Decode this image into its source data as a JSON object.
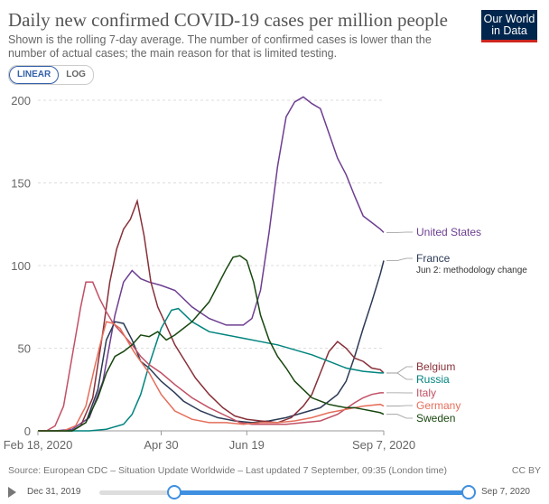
{
  "header": {
    "title": "Daily new confirmed COVID-19 cases per million people",
    "subtitle": "Shown is the rolling 7-day average. The number of confirmed cases is lower than the number of actual cases; the main reason for that is limited testing.",
    "logo_line1": "Our World",
    "logo_line2": "in Data"
  },
  "scale_toggle": {
    "linear_label": "LINEAR",
    "log_label": "LOG",
    "selected": "LINEAR"
  },
  "footer": {
    "source": "Source: European CDC – Situation Update Worldwide – Last updated 7 September, 09:35 (London time)",
    "license": "CC BY"
  },
  "timeline": {
    "start_label": "Dec 31, 2019",
    "end_label": "Sep 7, 2020",
    "selection_start_fraction": 0.19,
    "selection_end_fraction": 1.0
  },
  "chart_data": {
    "type": "line",
    "title": "Daily new confirmed COVID-19 cases per million people",
    "xlabel": "",
    "ylabel": "",
    "ylim": [
      0,
      200
    ],
    "yticks": [
      0,
      50,
      100,
      150,
      200
    ],
    "xlim": [
      "2020-02-18",
      "2020-09-07"
    ],
    "xticks": [
      {
        "day": 0,
        "label": "Feb 18, 2020"
      },
      {
        "day": 72,
        "label": "Apr 30"
      },
      {
        "day": 122,
        "label": "Jun 19"
      },
      {
        "day": 202,
        "label": "Sep 7, 2020"
      }
    ],
    "grid": true,
    "annotations": [
      "Jun 2: methodology change"
    ],
    "series": [
      {
        "name": "United States",
        "color": "#6d3e91",
        "points": [
          [
            0,
            0
          ],
          [
            10,
            0
          ],
          [
            20,
            1
          ],
          [
            30,
            8
          ],
          [
            38,
            30
          ],
          [
            45,
            70
          ],
          [
            50,
            90
          ],
          [
            55,
            97
          ],
          [
            60,
            92
          ],
          [
            65,
            90
          ],
          [
            72,
            88
          ],
          [
            80,
            85
          ],
          [
            90,
            75
          ],
          [
            100,
            68
          ],
          [
            110,
            64
          ],
          [
            120,
            64
          ],
          [
            125,
            68
          ],
          [
            130,
            85
          ],
          [
            135,
            120
          ],
          [
            140,
            160
          ],
          [
            145,
            190
          ],
          [
            150,
            199
          ],
          [
            155,
            202
          ],
          [
            160,
            198
          ],
          [
            165,
            195
          ],
          [
            170,
            180
          ],
          [
            175,
            165
          ],
          [
            180,
            155
          ],
          [
            185,
            142
          ],
          [
            190,
            130
          ],
          [
            195,
            126
          ],
          [
            200,
            122
          ],
          [
            202,
            120
          ]
        ]
      },
      {
        "name": "France",
        "color": "#2b3a55",
        "points": [
          [
            0,
            0
          ],
          [
            20,
            0
          ],
          [
            28,
            5
          ],
          [
            35,
            25
          ],
          [
            40,
            55
          ],
          [
            45,
            66
          ],
          [
            50,
            65
          ],
          [
            55,
            55
          ],
          [
            60,
            42
          ],
          [
            65,
            38
          ],
          [
            72,
            30
          ],
          [
            80,
            23
          ],
          [
            85,
            18
          ],
          [
            95,
            12
          ],
          [
            105,
            8
          ],
          [
            115,
            6
          ],
          [
            125,
            5
          ],
          [
            135,
            6
          ],
          [
            145,
            8
          ],
          [
            155,
            11
          ],
          [
            165,
            14
          ],
          [
            170,
            18
          ],
          [
            175,
            22
          ],
          [
            180,
            30
          ],
          [
            185,
            45
          ],
          [
            190,
            62
          ],
          [
            195,
            78
          ],
          [
            200,
            95
          ],
          [
            202,
            103
          ]
        ]
      },
      {
        "name": "Belgium",
        "color": "#883039",
        "points": [
          [
            0,
            0
          ],
          [
            20,
            0
          ],
          [
            25,
            3
          ],
          [
            32,
            20
          ],
          [
            38,
            60
          ],
          [
            42,
            90
          ],
          [
            46,
            110
          ],
          [
            50,
            122
          ],
          [
            54,
            128
          ],
          [
            58,
            139
          ],
          [
            62,
            118
          ],
          [
            66,
            90
          ],
          [
            70,
            75
          ],
          [
            74,
            66
          ],
          [
            80,
            52
          ],
          [
            86,
            42
          ],
          [
            92,
            32
          ],
          [
            100,
            22
          ],
          [
            108,
            14
          ],
          [
            115,
            9
          ],
          [
            122,
            7
          ],
          [
            130,
            6
          ],
          [
            140,
            5
          ],
          [
            148,
            8
          ],
          [
            155,
            15
          ],
          [
            160,
            22
          ],
          [
            165,
            35
          ],
          [
            170,
            48
          ],
          [
            175,
            54
          ],
          [
            180,
            50
          ],
          [
            185,
            44
          ],
          [
            190,
            42
          ],
          [
            195,
            38
          ],
          [
            200,
            37
          ],
          [
            202,
            35
          ]
        ]
      },
      {
        "name": "Russia",
        "color": "#00847e",
        "points": [
          [
            0,
            0
          ],
          [
            30,
            0
          ],
          [
            40,
            1
          ],
          [
            50,
            4
          ],
          [
            55,
            10
          ],
          [
            60,
            22
          ],
          [
            65,
            40
          ],
          [
            72,
            62
          ],
          [
            78,
            73
          ],
          [
            82,
            74
          ],
          [
            86,
            70
          ],
          [
            90,
            66
          ],
          [
            95,
            63
          ],
          [
            100,
            60
          ],
          [
            110,
            58
          ],
          [
            120,
            56
          ],
          [
            130,
            54
          ],
          [
            140,
            52
          ],
          [
            150,
            49
          ],
          [
            160,
            46
          ],
          [
            170,
            42
          ],
          [
            180,
            38
          ],
          [
            190,
            36
          ],
          [
            200,
            35
          ],
          [
            202,
            35
          ]
        ]
      },
      {
        "name": "Italy",
        "color": "#c15065",
        "points": [
          [
            0,
            0
          ],
          [
            5,
            0
          ],
          [
            10,
            3
          ],
          [
            15,
            15
          ],
          [
            20,
            45
          ],
          [
            25,
            75
          ],
          [
            28,
            90
          ],
          [
            32,
            90
          ],
          [
            36,
            80
          ],
          [
            40,
            72
          ],
          [
            44,
            65
          ],
          [
            50,
            58
          ],
          [
            55,
            52
          ],
          [
            60,
            45
          ],
          [
            65,
            40
          ],
          [
            72,
            35
          ],
          [
            80,
            28
          ],
          [
            90,
            20
          ],
          [
            100,
            14
          ],
          [
            110,
            9
          ],
          [
            118,
            5
          ],
          [
            125,
            4
          ],
          [
            135,
            4
          ],
          [
            145,
            4
          ],
          [
            155,
            5
          ],
          [
            165,
            6
          ],
          [
            175,
            10
          ],
          [
            185,
            17
          ],
          [
            190,
            20
          ],
          [
            195,
            22
          ],
          [
            200,
            23
          ],
          [
            202,
            23
          ]
        ]
      },
      {
        "name": "Germany",
        "color": "#e56e5a",
        "points": [
          [
            0,
            0
          ],
          [
            15,
            0
          ],
          [
            22,
            3
          ],
          [
            28,
            15
          ],
          [
            33,
            38
          ],
          [
            37,
            55
          ],
          [
            40,
            66
          ],
          [
            44,
            65
          ],
          [
            48,
            62
          ],
          [
            52,
            55
          ],
          [
            56,
            48
          ],
          [
            60,
            42
          ],
          [
            65,
            35
          ],
          [
            72,
            22
          ],
          [
            80,
            12
          ],
          [
            90,
            7
          ],
          [
            100,
            5
          ],
          [
            110,
            5
          ],
          [
            120,
            4
          ],
          [
            130,
            5
          ],
          [
            140,
            5
          ],
          [
            150,
            6
          ],
          [
            160,
            8
          ],
          [
            170,
            11
          ],
          [
            180,
            13
          ],
          [
            190,
            15
          ],
          [
            200,
            16
          ],
          [
            202,
            15
          ]
        ]
      },
      {
        "name": "Sweden",
        "color": "#18470f",
        "points": [
          [
            0,
            0
          ],
          [
            20,
            0
          ],
          [
            28,
            5
          ],
          [
            35,
            20
          ],
          [
            40,
            35
          ],
          [
            45,
            45
          ],
          [
            50,
            48
          ],
          [
            55,
            52
          ],
          [
            60,
            58
          ],
          [
            65,
            57
          ],
          [
            70,
            60
          ],
          [
            75,
            55
          ],
          [
            80,
            58
          ],
          [
            85,
            62
          ],
          [
            90,
            66
          ],
          [
            95,
            72
          ],
          [
            100,
            78
          ],
          [
            105,
            88
          ],
          [
            110,
            98
          ],
          [
            114,
            105
          ],
          [
            118,
            106
          ],
          [
            122,
            103
          ],
          [
            126,
            90
          ],
          [
            130,
            70
          ],
          [
            135,
            55
          ],
          [
            140,
            45
          ],
          [
            145,
            38
          ],
          [
            150,
            30
          ],
          [
            155,
            25
          ],
          [
            160,
            20
          ],
          [
            165,
            18
          ],
          [
            170,
            16
          ],
          [
            175,
            15
          ],
          [
            180,
            14
          ],
          [
            185,
            14
          ],
          [
            190,
            13
          ],
          [
            195,
            12
          ],
          [
            200,
            11
          ],
          [
            202,
            10
          ]
        ]
      }
    ]
  }
}
